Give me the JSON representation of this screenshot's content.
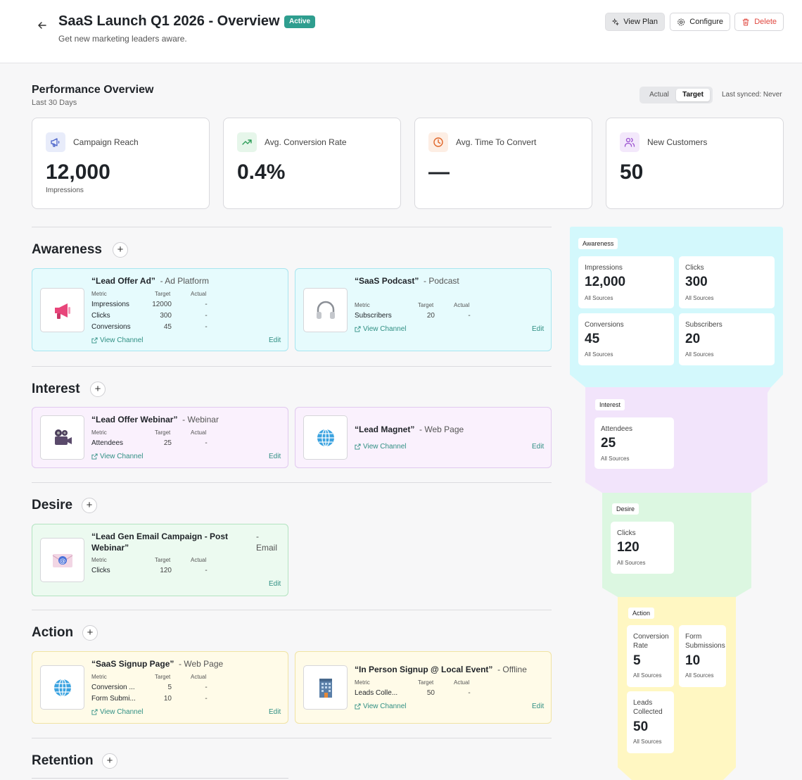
{
  "header": {
    "title": "SaaS Launch Q1 2026 - Overview",
    "status": "Active",
    "subtitle": "Get new marketing leaders aware.",
    "view_plan": "View Plan",
    "configure": "Configure",
    "delete": "Delete"
  },
  "performance": {
    "title": "Performance Overview",
    "period": "Last 30 Days",
    "toggle_actual": "Actual",
    "toggle_target": "Target",
    "synced": "Last synced: Never",
    "kpis": [
      {
        "label": "Campaign Reach",
        "value": "12,000",
        "unit": "Impressions",
        "icon": "megaphone-icon",
        "color": "#4a63c9"
      },
      {
        "label": "Avg. Conversion Rate",
        "value": "0.4%",
        "unit": "",
        "icon": "trend-up-icon",
        "color": "#2f9e5a"
      },
      {
        "label": "Avg. Time To Convert",
        "value": "—",
        "unit": "",
        "icon": "clock-icon",
        "color": "#e0672a"
      },
      {
        "label": "New Customers",
        "value": "50",
        "unit": "",
        "icon": "users-icon",
        "color": "#9a4fd0"
      }
    ]
  },
  "metric_header": {
    "metric": "Metric",
    "target": "Target",
    "actual": "Actual"
  },
  "view_channel": "View Channel",
  "edit": "Edit",
  "sections": {
    "awareness": {
      "title": "Awareness",
      "cards": [
        {
          "name": "“Lead Offer Ad”",
          "type": "- Ad Platform",
          "rows": [
            [
              "Impressions",
              "12000",
              "-"
            ],
            [
              "Clicks",
              "300",
              "-"
            ],
            [
              "Conversions",
              "45",
              "-"
            ]
          ]
        },
        {
          "name": "“SaaS Podcast”",
          "type": "- Podcast",
          "rows": [
            [
              "Subscribers",
              "20",
              "-"
            ]
          ]
        }
      ]
    },
    "interest": {
      "title": "Interest",
      "cards": [
        {
          "name": "“Lead Offer Webinar”",
          "type": "- Webinar",
          "rows": [
            [
              "Attendees",
              "25",
              "-"
            ]
          ]
        },
        {
          "name": "“Lead Magnet”",
          "type": "- Web Page",
          "rows": []
        }
      ]
    },
    "desire": {
      "title": "Desire",
      "cards": [
        {
          "name_line1": "“Lead Gen Email Campaign - Post",
          "name_line2": "Webinar”",
          "type_line1": "-",
          "type_line2": "Email",
          "rows": [
            [
              "Clicks",
              "120",
              "-"
            ]
          ]
        }
      ]
    },
    "action": {
      "title": "Action",
      "cards": [
        {
          "name": "“SaaS Signup Page”",
          "type": "- Web Page",
          "rows": [
            [
              "Conversion ...",
              "5",
              "-"
            ],
            [
              "Form Submi...",
              "10",
              "-"
            ]
          ]
        },
        {
          "name": "“In Person Signup @ Local Event”",
          "type": "- Offline",
          "rows": [
            [
              "Leads Colle...",
              "50",
              "-"
            ]
          ]
        }
      ]
    },
    "retention": {
      "title": "Retention"
    }
  },
  "funnel": {
    "awareness": {
      "label": "Awareness",
      "tiles": [
        [
          "Impressions",
          "12,000"
        ],
        [
          "Clicks",
          "300"
        ],
        [
          "Conversions",
          "45"
        ],
        [
          "Subscribers",
          "20"
        ]
      ]
    },
    "interest": {
      "label": "Interest",
      "tiles": [
        [
          "Attendees",
          "25"
        ]
      ]
    },
    "desire": {
      "label": "Desire",
      "tiles": [
        [
          "Clicks",
          "120"
        ]
      ]
    },
    "action": {
      "label": "Action",
      "tiles": [
        [
          "Conversion Rate",
          "5"
        ],
        [
          "Form Submissions",
          "10"
        ],
        [
          "Leads Collected",
          "50"
        ]
      ]
    },
    "all_sources": "All Sources"
  }
}
